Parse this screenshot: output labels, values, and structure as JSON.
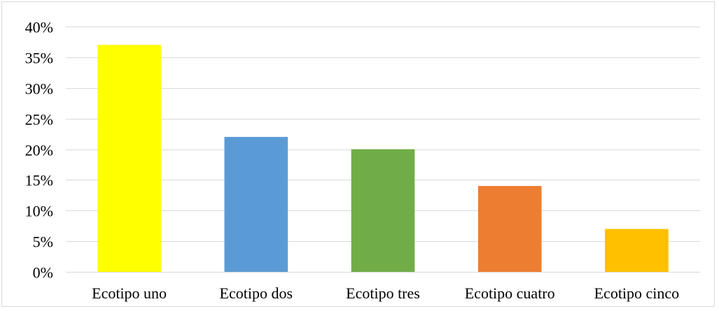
{
  "chart_data": {
    "type": "bar",
    "title": "",
    "xlabel": "",
    "ylabel": "",
    "categories": [
      "Ecotipo uno",
      "Ecotipo dos",
      "Ecotipo tres",
      "Ecotipo cuatro",
      "Ecotipo cinco"
    ],
    "values": [
      37,
      22,
      20,
      14,
      7
    ],
    "colors": [
      "#FFFF00",
      "#5B9BD5",
      "#70AD47",
      "#ED7D31",
      "#FFC000"
    ],
    "ylim": [
      0,
      40
    ],
    "yticks": [
      0,
      5,
      10,
      15,
      20,
      25,
      30,
      35,
      40
    ],
    "ytick_labels": [
      "0%",
      "5%",
      "10%",
      "15%",
      "20%",
      "25%",
      "30%",
      "35%",
      "40%"
    ],
    "y_unit": "%",
    "grid": true,
    "legend": "none",
    "gridline_color": "#D9D9D9"
  }
}
